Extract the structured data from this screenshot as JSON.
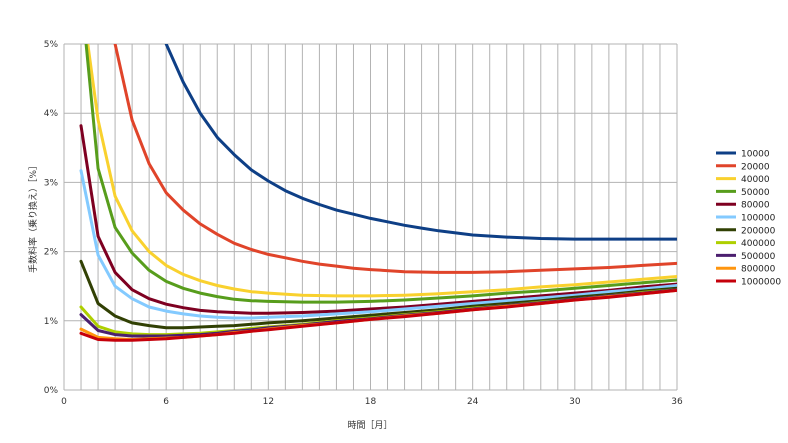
{
  "chart_data": {
    "type": "line",
    "xlabel": "時間［月］",
    "ylabel": "手数料率（乗り換え）［%］",
    "xlim": [
      0,
      36
    ],
    "ylim": [
      0,
      5
    ],
    "xticks": [
      0,
      6,
      12,
      18,
      24,
      30,
      36
    ],
    "xtick_labels": [
      "0",
      "6",
      "12",
      "18",
      "24",
      "30",
      "36"
    ],
    "yticks": [
      0,
      1,
      2,
      3,
      4,
      5
    ],
    "ytick_labels": [
      "0%",
      "1%",
      "2%",
      "3%",
      "4%",
      "5%"
    ],
    "grid": true,
    "legend_position": "right",
    "series": [
      {
        "name": "10000",
        "color": "#0e3f86",
        "points": [
          [
            6,
            5.0
          ],
          [
            7,
            4.45
          ],
          [
            8,
            4.0
          ],
          [
            9,
            3.65
          ],
          [
            10,
            3.4
          ],
          [
            11,
            3.18
          ],
          [
            12,
            3.02
          ],
          [
            13,
            2.88
          ],
          [
            14,
            2.77
          ],
          [
            15,
            2.68
          ],
          [
            16,
            2.6
          ],
          [
            17,
            2.54
          ],
          [
            18,
            2.48
          ],
          [
            19,
            2.43
          ],
          [
            20,
            2.38
          ],
          [
            21,
            2.34
          ],
          [
            22,
            2.3
          ],
          [
            24,
            2.24
          ],
          [
            26,
            2.21
          ],
          [
            28,
            2.19
          ],
          [
            30,
            2.18
          ],
          [
            32,
            2.18
          ],
          [
            34,
            2.18
          ],
          [
            36,
            2.18
          ]
        ]
      },
      {
        "name": "20000",
        "color": "#e0442a",
        "points": [
          [
            3,
            5.0
          ],
          [
            4,
            3.9
          ],
          [
            5,
            3.27
          ],
          [
            6,
            2.85
          ],
          [
            7,
            2.6
          ],
          [
            8,
            2.4
          ],
          [
            9,
            2.25
          ],
          [
            10,
            2.12
          ],
          [
            11,
            2.03
          ],
          [
            12,
            1.96
          ],
          [
            13,
            1.91
          ],
          [
            14,
            1.86
          ],
          [
            15,
            1.82
          ],
          [
            16,
            1.79
          ],
          [
            17,
            1.76
          ],
          [
            18,
            1.74
          ],
          [
            20,
            1.71
          ],
          [
            22,
            1.7
          ],
          [
            24,
            1.7
          ],
          [
            26,
            1.71
          ],
          [
            28,
            1.73
          ],
          [
            30,
            1.75
          ],
          [
            32,
            1.77
          ],
          [
            34,
            1.8
          ],
          [
            36,
            1.83
          ]
        ]
      },
      {
        "name": "40000",
        "color": "#f9d12e",
        "points": [
          [
            1.4,
            5.0
          ],
          [
            2,
            3.9
          ],
          [
            3,
            2.8
          ],
          [
            4,
            2.3
          ],
          [
            5,
            2.0
          ],
          [
            6,
            1.8
          ],
          [
            7,
            1.67
          ],
          [
            8,
            1.58
          ],
          [
            9,
            1.51
          ],
          [
            10,
            1.46
          ],
          [
            11,
            1.42
          ],
          [
            12,
            1.4
          ],
          [
            14,
            1.37
          ],
          [
            16,
            1.36
          ],
          [
            18,
            1.36
          ],
          [
            20,
            1.37
          ],
          [
            22,
            1.39
          ],
          [
            24,
            1.42
          ],
          [
            26,
            1.45
          ],
          [
            28,
            1.49
          ],
          [
            30,
            1.52
          ],
          [
            32,
            1.56
          ],
          [
            34,
            1.6
          ],
          [
            36,
            1.64
          ]
        ]
      },
      {
        "name": "50000",
        "color": "#579d1c",
        "points": [
          [
            1.3,
            5.0
          ],
          [
            2,
            3.2
          ],
          [
            3,
            2.35
          ],
          [
            4,
            1.98
          ],
          [
            5,
            1.73
          ],
          [
            6,
            1.57
          ],
          [
            7,
            1.47
          ],
          [
            8,
            1.4
          ],
          [
            9,
            1.35
          ],
          [
            10,
            1.31
          ],
          [
            11,
            1.29
          ],
          [
            12,
            1.28
          ],
          [
            14,
            1.27
          ],
          [
            16,
            1.27
          ],
          [
            18,
            1.28
          ],
          [
            20,
            1.3
          ],
          [
            22,
            1.33
          ],
          [
            24,
            1.36
          ],
          [
            26,
            1.4
          ],
          [
            28,
            1.43
          ],
          [
            30,
            1.47
          ],
          [
            32,
            1.51
          ],
          [
            34,
            1.55
          ],
          [
            36,
            1.59
          ]
        ]
      },
      {
        "name": "80000",
        "color": "#7e0021",
        "points": [
          [
            1,
            3.82
          ],
          [
            2,
            2.22
          ],
          [
            3,
            1.7
          ],
          [
            4,
            1.45
          ],
          [
            5,
            1.32
          ],
          [
            6,
            1.24
          ],
          [
            7,
            1.19
          ],
          [
            8,
            1.15
          ],
          [
            9,
            1.13
          ],
          [
            10,
            1.12
          ],
          [
            11,
            1.11
          ],
          [
            12,
            1.11
          ],
          [
            14,
            1.12
          ],
          [
            16,
            1.14
          ],
          [
            18,
            1.17
          ],
          [
            20,
            1.2
          ],
          [
            22,
            1.24
          ],
          [
            24,
            1.28
          ],
          [
            26,
            1.32
          ],
          [
            28,
            1.36
          ],
          [
            30,
            1.4
          ],
          [
            32,
            1.44
          ],
          [
            34,
            1.49
          ],
          [
            36,
            1.53
          ]
        ]
      },
      {
        "name": "100000",
        "color": "#83caff",
        "points": [
          [
            1,
            3.17
          ],
          [
            2,
            1.95
          ],
          [
            3,
            1.5
          ],
          [
            4,
            1.32
          ],
          [
            5,
            1.2
          ],
          [
            6,
            1.14
          ],
          [
            7,
            1.1
          ],
          [
            8,
            1.07
          ],
          [
            9,
            1.05
          ],
          [
            10,
            1.04
          ],
          [
            11,
            1.04
          ],
          [
            12,
            1.05
          ],
          [
            14,
            1.07
          ],
          [
            16,
            1.1
          ],
          [
            18,
            1.13
          ],
          [
            20,
            1.17
          ],
          [
            22,
            1.21
          ],
          [
            24,
            1.25
          ],
          [
            26,
            1.29
          ],
          [
            28,
            1.33
          ],
          [
            30,
            1.37
          ],
          [
            32,
            1.42
          ],
          [
            34,
            1.46
          ],
          [
            36,
            1.51
          ]
        ]
      },
      {
        "name": "200000",
        "color": "#314004",
        "points": [
          [
            1,
            1.86
          ],
          [
            2,
            1.25
          ],
          [
            3,
            1.07
          ],
          [
            4,
            0.97
          ],
          [
            5,
            0.93
          ],
          [
            6,
            0.9
          ],
          [
            7,
            0.9
          ],
          [
            8,
            0.91
          ],
          [
            9,
            0.92
          ],
          [
            10,
            0.93
          ],
          [
            11,
            0.95
          ],
          [
            12,
            0.97
          ],
          [
            14,
            1.0
          ],
          [
            16,
            1.04
          ],
          [
            18,
            1.08
          ],
          [
            20,
            1.12
          ],
          [
            22,
            1.16
          ],
          [
            24,
            1.21
          ],
          [
            26,
            1.25
          ],
          [
            28,
            1.29
          ],
          [
            30,
            1.34
          ],
          [
            32,
            1.38
          ],
          [
            34,
            1.43
          ],
          [
            36,
            1.47
          ]
        ]
      },
      {
        "name": "400000",
        "color": "#aecf00",
        "points": [
          [
            1,
            1.2
          ],
          [
            2,
            0.92
          ],
          [
            3,
            0.84
          ],
          [
            4,
            0.81
          ],
          [
            5,
            0.8
          ],
          [
            6,
            0.8
          ],
          [
            7,
            0.81
          ],
          [
            8,
            0.82
          ],
          [
            9,
            0.84
          ],
          [
            10,
            0.86
          ],
          [
            11,
            0.89
          ],
          [
            12,
            0.91
          ],
          [
            14,
            0.95
          ],
          [
            16,
            1.0
          ],
          [
            18,
            1.04
          ],
          [
            20,
            1.09
          ],
          [
            22,
            1.13
          ],
          [
            24,
            1.18
          ],
          [
            26,
            1.22
          ],
          [
            28,
            1.27
          ],
          [
            30,
            1.31
          ],
          [
            32,
            1.36
          ],
          [
            34,
            1.41
          ],
          [
            36,
            1.45
          ]
        ]
      },
      {
        "name": "500000",
        "color": "#4b1f6f",
        "points": [
          [
            1,
            1.09
          ],
          [
            2,
            0.86
          ],
          [
            3,
            0.8
          ],
          [
            4,
            0.78
          ],
          [
            5,
            0.78
          ],
          [
            6,
            0.78
          ],
          [
            7,
            0.79
          ],
          [
            8,
            0.8
          ],
          [
            9,
            0.82
          ],
          [
            10,
            0.85
          ],
          [
            11,
            0.87
          ],
          [
            12,
            0.9
          ],
          [
            14,
            0.94
          ],
          [
            16,
            0.99
          ],
          [
            18,
            1.03
          ],
          [
            20,
            1.08
          ],
          [
            22,
            1.12
          ],
          [
            24,
            1.17
          ],
          [
            26,
            1.22
          ],
          [
            28,
            1.26
          ],
          [
            30,
            1.31
          ],
          [
            32,
            1.36
          ],
          [
            34,
            1.4
          ],
          [
            36,
            1.45
          ]
        ]
      },
      {
        "name": "800000",
        "color": "#ff950e",
        "points": [
          [
            1,
            0.88
          ],
          [
            2,
            0.76
          ],
          [
            3,
            0.74
          ],
          [
            4,
            0.73
          ],
          [
            5,
            0.74
          ],
          [
            6,
            0.75
          ],
          [
            7,
            0.76
          ],
          [
            8,
            0.78
          ],
          [
            9,
            0.8
          ],
          [
            10,
            0.83
          ],
          [
            11,
            0.85
          ],
          [
            12,
            0.88
          ],
          [
            14,
            0.93
          ],
          [
            16,
            0.97
          ],
          [
            18,
            1.02
          ],
          [
            20,
            1.07
          ],
          [
            22,
            1.11
          ],
          [
            24,
            1.16
          ],
          [
            26,
            1.21
          ],
          [
            28,
            1.25
          ],
          [
            30,
            1.3
          ],
          [
            32,
            1.35
          ],
          [
            34,
            1.39
          ],
          [
            36,
            1.44
          ]
        ]
      },
      {
        "name": "1000000",
        "color": "#c5000b",
        "points": [
          [
            1,
            0.82
          ],
          [
            2,
            0.73
          ],
          [
            3,
            0.72
          ],
          [
            4,
            0.72
          ],
          [
            5,
            0.73
          ],
          [
            6,
            0.74
          ],
          [
            7,
            0.76
          ],
          [
            8,
            0.78
          ],
          [
            9,
            0.8
          ],
          [
            10,
            0.82
          ],
          [
            11,
            0.85
          ],
          [
            12,
            0.87
          ],
          [
            14,
            0.92
          ],
          [
            16,
            0.97
          ],
          [
            18,
            1.02
          ],
          [
            20,
            1.06
          ],
          [
            22,
            1.11
          ],
          [
            24,
            1.16
          ],
          [
            26,
            1.2
          ],
          [
            28,
            1.25
          ],
          [
            30,
            1.3
          ],
          [
            32,
            1.34
          ],
          [
            34,
            1.39
          ],
          [
            36,
            1.44
          ]
        ]
      }
    ]
  }
}
